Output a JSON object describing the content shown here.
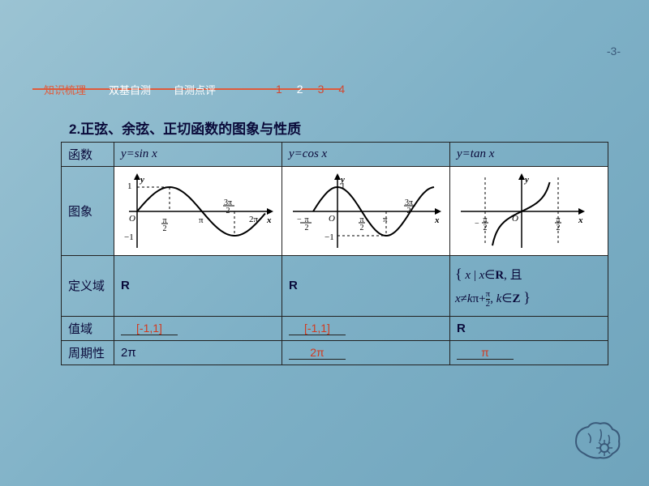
{
  "page_number": "-3-",
  "nav": {
    "items": [
      "知识梳理",
      "双基自测",
      "自测点评"
    ],
    "active_color": "#e05a3a",
    "numbers": [
      "1",
      "2",
      "3",
      "4"
    ],
    "current_number": 1
  },
  "section_title": "2.正弦、余弦、正切函数的图象与性质",
  "table": {
    "row_labels": [
      "函数",
      "图象",
      "定义域",
      "值域",
      "周期性"
    ],
    "columns": [
      {
        "func": "y=sin x",
        "domain": "R",
        "range": "[-1,1]",
        "period": "2π",
        "period_is_fill": false
      },
      {
        "func": "y=cos x",
        "domain": "R",
        "range": "[-1,1]",
        "period": "2π",
        "period_is_fill": true
      },
      {
        "func": "y=tan x",
        "domain_tex": "{ x | x∈R, 且 x≠kπ+π/2, k∈Z }",
        "range": "R",
        "range_is_plain": true,
        "period": "π",
        "period_is_fill": true
      }
    ]
  },
  "colors": {
    "bg_top": "#9bc3d3",
    "bg_bot": "#6fa4bc",
    "accent": "#e05a3a",
    "text_dark": "#0a0a3a",
    "fill_text": "#d13a1f",
    "border": "#222222",
    "graph_bg": "#ffffff",
    "graph_stroke": "#000000"
  },
  "graphs": {
    "sin": {
      "xmin": -0.3,
      "xmax": 6.6,
      "ymin": -1.4,
      "ymax": 1.4,
      "width": 190,
      "height": 100
    },
    "cos": {
      "xmin": -2.2,
      "xmax": 6.6,
      "ymin": -1.4,
      "ymax": 1.4,
      "width": 190,
      "height": 100
    },
    "tan": {
      "xmin": -2.2,
      "xmax": 2.2,
      "ymin": -3,
      "ymax": 3,
      "width": 160,
      "height": 100
    }
  }
}
